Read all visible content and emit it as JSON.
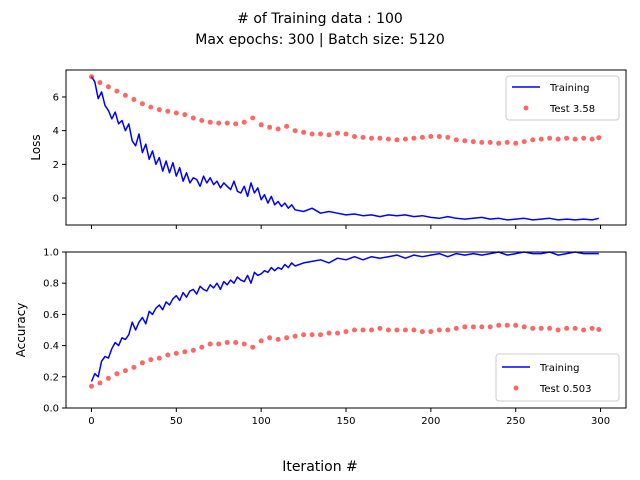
{
  "figure": {
    "suptitle_line1": "# of Training data : 100",
    "suptitle_line2": "Max epochs: 300 | Batch size: 5120",
    "xlabel": "Iteration #"
  },
  "chart_data": [
    {
      "type": "line",
      "ylabel": "Loss",
      "xlim": [
        -15,
        315
      ],
      "ylim": [
        -1.6,
        7.6
      ],
      "xticks": [
        0,
        50,
        100,
        150,
        200,
        250,
        300
      ],
      "xtick_labels_shown": false,
      "yticks": [
        0,
        2,
        4,
        6
      ],
      "legend_position": "upper-right",
      "series": [
        {
          "name": "Training",
          "style": "line",
          "color": "#0000ff",
          "x": [
            0,
            2,
            4,
            6,
            8,
            10,
            12,
            14,
            16,
            18,
            20,
            22,
            24,
            26,
            28,
            30,
            32,
            34,
            36,
            38,
            40,
            42,
            44,
            46,
            48,
            50,
            52,
            54,
            56,
            58,
            60,
            62,
            64,
            66,
            68,
            70,
            72,
            74,
            76,
            78,
            80,
            82,
            84,
            86,
            88,
            90,
            92,
            94,
            96,
            98,
            100,
            102,
            104,
            106,
            108,
            110,
            112,
            114,
            116,
            118,
            120,
            125,
            130,
            135,
            140,
            145,
            150,
            155,
            160,
            165,
            170,
            175,
            180,
            185,
            190,
            195,
            200,
            205,
            210,
            215,
            220,
            225,
            230,
            235,
            240,
            245,
            250,
            255,
            260,
            265,
            270,
            275,
            280,
            285,
            290,
            295,
            299
          ],
          "values": [
            7.2,
            6.9,
            5.9,
            6.3,
            5.5,
            5.2,
            4.7,
            5.1,
            4.4,
            4.6,
            4.0,
            4.4,
            3.4,
            3.1,
            3.8,
            2.7,
            3.2,
            2.3,
            2.8,
            2.0,
            2.4,
            1.6,
            2.2,
            1.5,
            2.1,
            1.3,
            1.8,
            1.0,
            1.5,
            0.9,
            1.2,
            1.1,
            0.7,
            1.3,
            0.9,
            1.2,
            0.8,
            1.0,
            0.6,
            0.9,
            0.7,
            0.5,
            1.0,
            0.4,
            0.3,
            0.7,
            0.1,
            0.9,
            0.3,
            0.6,
            -0.1,
            0.2,
            -0.3,
            0.1,
            -0.4,
            -0.2,
            -0.5,
            -0.3,
            -0.6,
            -0.4,
            -0.7,
            -0.8,
            -0.6,
            -0.9,
            -0.8,
            -0.9,
            -1.0,
            -0.95,
            -1.05,
            -1.0,
            -1.1,
            -1.0,
            -1.05,
            -1.0,
            -1.1,
            -1.05,
            -1.15,
            -1.2,
            -1.1,
            -1.2,
            -1.25,
            -1.2,
            -1.15,
            -1.25,
            -1.2,
            -1.3,
            -1.25,
            -1.2,
            -1.3,
            -1.25,
            -1.2,
            -1.3,
            -1.25,
            -1.3,
            -1.25,
            -1.3,
            -1.2
          ]
        },
        {
          "name": "Test 3.58",
          "style": "scatter",
          "color": "#ff0000",
          "x": [
            0,
            5,
            10,
            15,
            20,
            25,
            30,
            35,
            40,
            45,
            50,
            55,
            60,
            65,
            70,
            75,
            80,
            85,
            90,
            95,
            100,
            105,
            110,
            115,
            120,
            125,
            130,
            135,
            140,
            145,
            150,
            155,
            160,
            165,
            170,
            175,
            180,
            185,
            190,
            195,
            200,
            205,
            210,
            215,
            220,
            225,
            230,
            235,
            240,
            245,
            250,
            255,
            260,
            265,
            270,
            275,
            280,
            285,
            290,
            295,
            299
          ],
          "values": [
            7.2,
            6.85,
            6.6,
            6.35,
            6.1,
            5.85,
            5.6,
            5.4,
            5.25,
            5.15,
            5.05,
            4.95,
            4.75,
            4.6,
            4.5,
            4.45,
            4.45,
            4.4,
            4.5,
            4.75,
            4.35,
            4.2,
            4.1,
            4.25,
            4.0,
            3.9,
            3.8,
            3.8,
            3.75,
            3.85,
            3.8,
            3.65,
            3.6,
            3.55,
            3.55,
            3.5,
            3.45,
            3.5,
            3.55,
            3.6,
            3.65,
            3.65,
            3.6,
            3.45,
            3.4,
            3.35,
            3.3,
            3.3,
            3.25,
            3.3,
            3.25,
            3.35,
            3.45,
            3.5,
            3.55,
            3.5,
            3.55,
            3.5,
            3.55,
            3.5,
            3.58
          ]
        }
      ]
    },
    {
      "type": "line",
      "ylabel": "Accuracy",
      "xlim": [
        -15,
        315
      ],
      "ylim": [
        0.0,
        1.0
      ],
      "xticks": [
        0,
        50,
        100,
        150,
        200,
        250,
        300
      ],
      "yticks": [
        0.0,
        0.2,
        0.4,
        0.6,
        0.8,
        1.0
      ],
      "legend_position": "lower-right",
      "series": [
        {
          "name": "Training",
          "style": "line",
          "color": "#0000ff",
          "x": [
            0,
            2,
            4,
            6,
            8,
            10,
            12,
            14,
            16,
            18,
            20,
            22,
            24,
            26,
            28,
            30,
            32,
            34,
            36,
            38,
            40,
            42,
            44,
            46,
            48,
            50,
            52,
            54,
            56,
            58,
            60,
            62,
            64,
            66,
            68,
            70,
            72,
            74,
            76,
            78,
            80,
            82,
            84,
            86,
            88,
            90,
            92,
            94,
            96,
            98,
            100,
            102,
            104,
            106,
            108,
            110,
            112,
            114,
            116,
            118,
            120,
            125,
            130,
            135,
            140,
            145,
            150,
            155,
            160,
            165,
            170,
            175,
            180,
            185,
            190,
            195,
            200,
            205,
            210,
            215,
            220,
            225,
            230,
            235,
            240,
            245,
            250,
            255,
            260,
            265,
            270,
            275,
            280,
            285,
            290,
            295,
            299
          ],
          "values": [
            0.17,
            0.22,
            0.2,
            0.3,
            0.33,
            0.32,
            0.38,
            0.42,
            0.4,
            0.45,
            0.44,
            0.47,
            0.55,
            0.5,
            0.55,
            0.58,
            0.54,
            0.62,
            0.6,
            0.64,
            0.66,
            0.63,
            0.68,
            0.66,
            0.7,
            0.72,
            0.69,
            0.74,
            0.71,
            0.75,
            0.76,
            0.73,
            0.78,
            0.76,
            0.75,
            0.79,
            0.77,
            0.8,
            0.76,
            0.81,
            0.79,
            0.82,
            0.8,
            0.84,
            0.82,
            0.81,
            0.85,
            0.8,
            0.87,
            0.85,
            0.86,
            0.88,
            0.87,
            0.9,
            0.88,
            0.9,
            0.89,
            0.92,
            0.9,
            0.93,
            0.91,
            0.93,
            0.94,
            0.95,
            0.93,
            0.96,
            0.95,
            0.97,
            0.95,
            0.97,
            0.96,
            0.97,
            0.98,
            0.96,
            0.98,
            0.97,
            0.98,
            0.99,
            0.97,
            0.99,
            0.98,
            0.99,
            0.98,
            0.99,
            1.0,
            0.98,
            0.99,
            1.0,
            0.99,
            0.99,
            1.0,
            0.98,
            0.99,
            1.0,
            0.99,
            0.99,
            0.99
          ]
        },
        {
          "name": "Test 0.503",
          "style": "scatter",
          "color": "#ff0000",
          "x": [
            0,
            5,
            10,
            15,
            20,
            25,
            30,
            35,
            40,
            45,
            50,
            55,
            60,
            65,
            70,
            75,
            80,
            85,
            90,
            95,
            100,
            105,
            110,
            115,
            120,
            125,
            130,
            135,
            140,
            145,
            150,
            155,
            160,
            165,
            170,
            175,
            180,
            185,
            190,
            195,
            200,
            205,
            210,
            215,
            220,
            225,
            230,
            235,
            240,
            245,
            250,
            255,
            260,
            265,
            270,
            275,
            280,
            285,
            290,
            295,
            299
          ],
          "values": [
            0.14,
            0.16,
            0.19,
            0.22,
            0.24,
            0.26,
            0.29,
            0.31,
            0.32,
            0.34,
            0.35,
            0.36,
            0.37,
            0.39,
            0.41,
            0.41,
            0.42,
            0.42,
            0.41,
            0.39,
            0.43,
            0.45,
            0.44,
            0.45,
            0.46,
            0.47,
            0.47,
            0.47,
            0.48,
            0.48,
            0.49,
            0.5,
            0.5,
            0.5,
            0.51,
            0.5,
            0.5,
            0.5,
            0.5,
            0.49,
            0.49,
            0.5,
            0.5,
            0.51,
            0.52,
            0.52,
            0.52,
            0.52,
            0.53,
            0.53,
            0.53,
            0.52,
            0.51,
            0.51,
            0.51,
            0.5,
            0.51,
            0.51,
            0.5,
            0.51,
            0.503
          ]
        }
      ]
    }
  ]
}
